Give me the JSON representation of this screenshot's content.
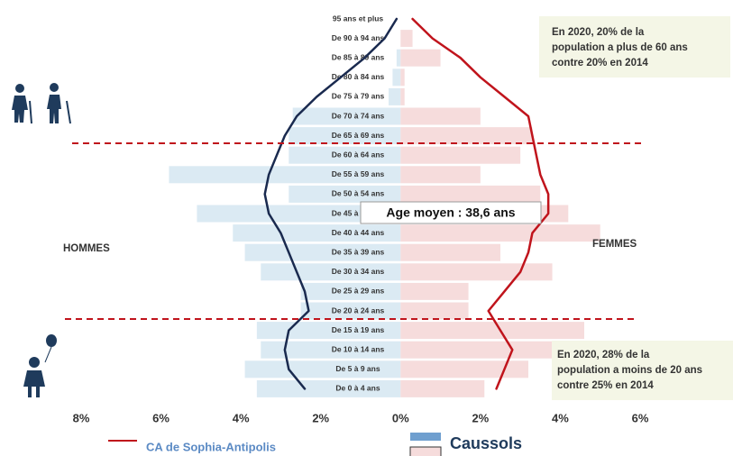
{
  "chart_data": {
    "type": "pyramid",
    "categories": [
      "95 ans et plus",
      "De 90 à 94 ans",
      "De 85 à 89 ans",
      "De 80 à 84 ans",
      "De 75 à 79 ans",
      "De 70 à 74 ans",
      "De 65 à 69 ans",
      "De 60 à 64 ans",
      "De 55 à 59 ans",
      "De 50 à 54 ans",
      "De 45 à 49 ans",
      "De 40 à 44 ans",
      "De 35 à 39 ans",
      "De 30 à 34 ans",
      "De 25 à 29 ans",
      "De 20 à 24 ans",
      "De 15 à 19 ans",
      "De 10 à 14 ans",
      "De 5 à 9 ans",
      "De 0 à 4 ans"
    ],
    "series": [
      {
        "name": "Caussols",
        "kind": "bar",
        "color": "#6f9fcf",
        "men_color": "#dbeaf3",
        "women_color": "#f6dcdc",
        "men_values": [
          0,
          0,
          0.1,
          0.2,
          0.3,
          2.7,
          2.8,
          2.8,
          5.8,
          2.8,
          5.1,
          4.2,
          3.9,
          3.5,
          2.5,
          2.5,
          3.6,
          3.5,
          3.9,
          3.6
        ],
        "women_values": [
          0,
          0.3,
          1.0,
          0.1,
          0.1,
          2.0,
          3.3,
          3.0,
          2.0,
          3.5,
          4.2,
          5.0,
          2.5,
          3.8,
          1.7,
          1.7,
          4.6,
          5.0,
          3.2,
          2.1
        ]
      },
      {
        "name": "CA de Sophia-Antipolis",
        "kind": "line",
        "color": "#c0141c",
        "men_color": "#1a2a4f",
        "women_color": "#c0141c",
        "men_values": [
          0.1,
          0.4,
          0.9,
          1.5,
          2.1,
          2.6,
          2.9,
          3.1,
          3.3,
          3.4,
          3.3,
          3.0,
          2.8,
          2.6,
          2.4,
          2.3,
          2.8,
          2.9,
          2.8,
          2.4
        ],
        "women_values": [
          0.3,
          0.8,
          1.5,
          2.0,
          2.6,
          3.2,
          3.3,
          3.4,
          3.5,
          3.7,
          3.7,
          3.3,
          3.2,
          3.0,
          2.6,
          2.2,
          2.5,
          2.8,
          2.6,
          2.4
        ]
      }
    ],
    "xlim": [
      -8,
      6
    ],
    "xticks": [
      {
        "value": -8,
        "label": "8%"
      },
      {
        "value": -6,
        "label": "6%"
      },
      {
        "value": -4,
        "label": "4%"
      },
      {
        "value": -2,
        "label": "2%"
      },
      {
        "value": 0,
        "label": "0%"
      },
      {
        "value": 2,
        "label": "2%"
      },
      {
        "value": 4,
        "label": "4%"
      },
      {
        "value": 6,
        "label": "6%"
      }
    ],
    "men_label": "HOMMES",
    "women_label": "FEMMES",
    "average_label": "Age moyen : 38,6 ans",
    "note_top": [
      "En 2020,  20% de la",
      "population a plus de 60 ans",
      "contre 20% en 2014"
    ],
    "note_bottom": [
      "En 2020, 28% de la",
      "population a moins de 20 ans",
      "contre 25% en 2014"
    ]
  }
}
